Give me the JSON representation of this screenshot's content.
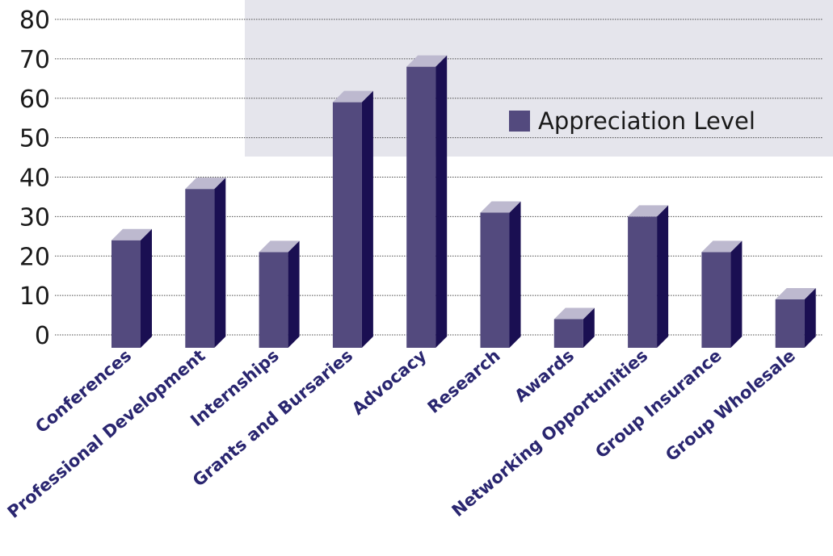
{
  "chart_data": {
    "type": "bar",
    "style": "3d-column",
    "categories": [
      "Conferences",
      "Professional Development",
      "Internships",
      "Grants and Bursaries",
      "Advocacy",
      "Research",
      "Awards",
      "Networking Opportunities",
      "Group Insurance",
      "Group Wholesale"
    ],
    "series": [
      {
        "name": "Appreciation Level",
        "values": [
          24,
          37,
          21,
          59,
          68,
          31,
          4,
          30,
          21,
          9
        ]
      }
    ],
    "ylim": [
      0,
      80
    ],
    "yticks": [
      "0",
      "10",
      "20",
      "30",
      "40",
      "50",
      "60",
      "70",
      "80"
    ],
    "grid": true,
    "legend_position": "upper-right",
    "colors": {
      "bar_front": "#534a7e",
      "bar_side": "#1a0f52",
      "bar_top": "#bdb9cf",
      "legend_panel": "#e5e5ec",
      "category_text": "#2a2670"
    }
  }
}
